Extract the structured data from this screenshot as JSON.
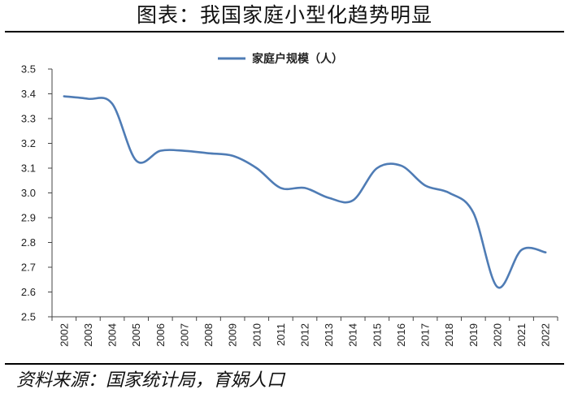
{
  "title": "图表：我国家庭小型化趋势明显",
  "source": "资料来源：国家统计局，育娲人口",
  "colors": {
    "series": "#4f7cb5",
    "axis": "#444444",
    "text": "#222222"
  },
  "chart_data": {
    "type": "line",
    "x": [
      "2002",
      "2003",
      "2004",
      "2005",
      "2006",
      "2007",
      "2008",
      "2009",
      "2010",
      "2011",
      "2012",
      "2013",
      "2014",
      "2015",
      "2016",
      "2017",
      "2018",
      "2019",
      "2020",
      "2021",
      "2022"
    ],
    "series": [
      {
        "name": "家庭户规模（人）",
        "values": [
          3.39,
          3.38,
          3.36,
          3.13,
          3.17,
          3.17,
          3.16,
          3.15,
          3.1,
          3.02,
          3.02,
          2.98,
          2.97,
          3.1,
          3.11,
          3.03,
          3.0,
          2.92,
          2.62,
          2.77,
          2.76
        ]
      }
    ],
    "ylim": [
      2.5,
      3.5
    ],
    "yticks": [
      "2.5",
      "2.6",
      "2.7",
      "2.8",
      "2.9",
      "3.0",
      "3.1",
      "3.2",
      "3.3",
      "3.4",
      "3.5"
    ],
    "grid": false,
    "legend": "top-center",
    "smooth": true
  }
}
